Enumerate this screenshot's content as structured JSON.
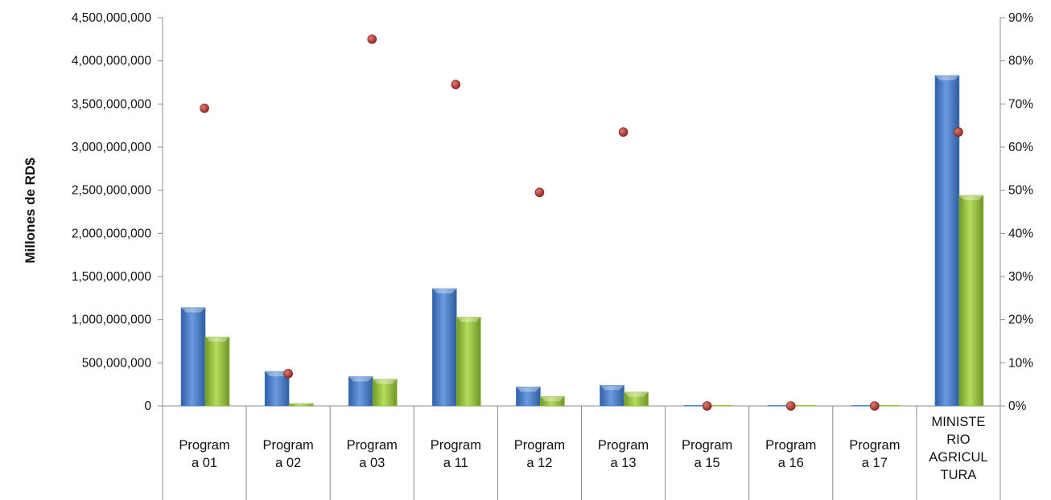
{
  "chart_data": {
    "type": "bar",
    "title": "",
    "ylabel": "Millones de RD$",
    "categories": [
      [
        "Program",
        "a 01"
      ],
      [
        "Program",
        "a 02"
      ],
      [
        "Program",
        "a 03"
      ],
      [
        "Program",
        "a 11"
      ],
      [
        "Program",
        "a 12"
      ],
      [
        "Program",
        "a 13"
      ],
      [
        "Program",
        "a 15"
      ],
      [
        "Program",
        "a 16"
      ],
      [
        "Program",
        "a 17"
      ],
      [
        "MINISTE",
        "RIO",
        "AGRICUL",
        "TURA"
      ]
    ],
    "ylim": [
      0,
      4500000000
    ],
    "yticks": [
      "0",
      "500,000,000",
      "1,000,000,000",
      "1,500,000,000",
      "2,000,000,000",
      "2,500,000,000",
      "3,000,000,000",
      "3,500,000,000",
      "4,000,000,000",
      "4,500,000,000"
    ],
    "y2lim": [
      0,
      0.9
    ],
    "y2ticks": [
      "0%",
      "10%",
      "20%",
      "30%",
      "40%",
      "50%",
      "60%",
      "70%",
      "80%",
      "90%"
    ],
    "grid": false,
    "series": [
      {
        "values": [
          1140000000,
          400000000,
          340000000,
          1360000000,
          220000000,
          240000000,
          0,
          0,
          0,
          3830000000
        ],
        "color": "#4a7fc9",
        "kind": "bar",
        "axis": "left"
      },
      {
        "values": [
          800000000,
          30000000,
          310000000,
          1030000000,
          110000000,
          160000000,
          0,
          0,
          0,
          2440000000
        ],
        "color": "#8fbe3a",
        "kind": "bar",
        "axis": "left"
      },
      {
        "values": [
          0.69,
          0.075,
          0.85,
          0.745,
          0.495,
          0.635,
          0,
          0,
          0,
          0.635
        ],
        "color": "#b83a35",
        "kind": "scatter",
        "axis": "right"
      }
    ]
  }
}
